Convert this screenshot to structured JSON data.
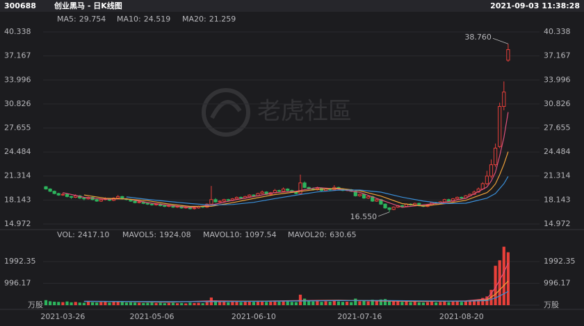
{
  "chart_data": {
    "type": "candlestick",
    "code": "300688",
    "title": "创业黑马 - 日K线图",
    "timestamp": "2021-09-03 11:38:28",
    "watermark": "老虎社區",
    "up_color": "#e8403a",
    "down_color": "#2db55d",
    "grid": true,
    "categories": [
      null,
      null,
      null,
      null,
      "2021-03-26",
      null,
      null,
      null,
      null,
      null,
      null,
      null,
      null,
      null,
      null,
      null,
      null,
      null,
      null,
      null,
      null,
      null,
      null,
      null,
      null,
      "2021-05-06",
      null,
      null,
      null,
      null,
      null,
      null,
      null,
      null,
      null,
      null,
      null,
      null,
      null,
      null,
      null,
      null,
      null,
      null,
      null,
      null,
      null,
      null,
      null,
      "2021-06-10",
      null,
      null,
      null,
      null,
      null,
      null,
      null,
      null,
      null,
      null,
      null,
      null,
      null,
      null,
      null,
      null,
      null,
      null,
      null,
      null,
      null,
      null,
      null,
      null,
      "2021-07-16",
      null,
      null,
      null,
      null,
      null,
      null,
      null,
      null,
      null,
      null,
      null,
      null,
      null,
      null,
      null,
      null,
      null,
      null,
      null,
      null,
      null,
      null,
      null,
      "2021-08-20",
      null,
      null,
      null,
      null,
      null,
      null,
      null,
      null,
      null,
      null,
      null
    ],
    "ohlc": [
      [
        19.9,
        20.0,
        19.5,
        19.6
      ],
      [
        19.6,
        19.7,
        19.2,
        19.3
      ],
      [
        19.3,
        19.4,
        18.9,
        19.0
      ],
      [
        19.0,
        19.1,
        18.7,
        18.8
      ],
      [
        18.8,
        19.1,
        18.7,
        18.9
      ],
      [
        18.9,
        19.0,
        18.5,
        18.6
      ],
      [
        18.6,
        18.7,
        18.3,
        18.5
      ],
      [
        18.5,
        18.9,
        18.4,
        18.7
      ],
      [
        18.7,
        18.8,
        18.3,
        18.4
      ],
      [
        18.4,
        18.5,
        18.1,
        18.3
      ],
      [
        18.3,
        18.6,
        18.2,
        18.5
      ],
      [
        18.5,
        18.6,
        18.1,
        18.2
      ],
      [
        18.2,
        18.3,
        17.9,
        18.0
      ],
      [
        18.0,
        18.3,
        17.9,
        18.2
      ],
      [
        18.2,
        18.5,
        18.1,
        18.3
      ],
      [
        18.3,
        18.4,
        18.0,
        18.1
      ],
      [
        18.1,
        18.5,
        18.0,
        18.4
      ],
      [
        18.4,
        18.8,
        18.3,
        18.6
      ],
      [
        18.6,
        18.7,
        18.2,
        18.3
      ],
      [
        18.3,
        18.4,
        18.1,
        18.2
      ],
      [
        18.2,
        18.3,
        17.9,
        18.0
      ],
      [
        18.0,
        18.1,
        17.7,
        17.8
      ],
      [
        17.8,
        18.0,
        17.7,
        17.9
      ],
      [
        17.9,
        18.0,
        17.6,
        17.7
      ],
      [
        17.7,
        17.8,
        17.5,
        17.6
      ],
      [
        17.6,
        17.7,
        17.4,
        17.5
      ],
      [
        17.5,
        17.7,
        17.4,
        17.6
      ],
      [
        17.6,
        17.7,
        17.3,
        17.4
      ],
      [
        17.4,
        17.5,
        17.2,
        17.3
      ],
      [
        17.3,
        17.5,
        17.2,
        17.4
      ],
      [
        17.4,
        17.5,
        17.1,
        17.2
      ],
      [
        17.2,
        17.4,
        17.1,
        17.3
      ],
      [
        17.3,
        17.4,
        17.0,
        17.1
      ],
      [
        17.1,
        17.3,
        17.0,
        17.2
      ],
      [
        17.2,
        17.3,
        16.9,
        17.0
      ],
      [
        17.0,
        17.2,
        16.9,
        17.1
      ],
      [
        17.1,
        17.4,
        17.0,
        17.3
      ],
      [
        17.3,
        17.4,
        17.1,
        17.2
      ],
      [
        17.2,
        17.7,
        17.1,
        17.6
      ],
      [
        17.6,
        20.0,
        17.5,
        18.2
      ],
      [
        18.2,
        18.4,
        17.8,
        17.9
      ],
      [
        17.9,
        18.1,
        17.8,
        18.0
      ],
      [
        18.0,
        18.3,
        17.9,
        18.2
      ],
      [
        18.2,
        18.3,
        18.0,
        18.1
      ],
      [
        18.1,
        18.4,
        18.0,
        18.3
      ],
      [
        18.3,
        18.6,
        18.2,
        18.5
      ],
      [
        18.5,
        18.6,
        18.3,
        18.4
      ],
      [
        18.4,
        18.7,
        18.3,
        18.6
      ],
      [
        18.6,
        18.9,
        18.5,
        18.8
      ],
      [
        18.8,
        18.9,
        18.6,
        18.7
      ],
      [
        18.7,
        19.1,
        18.6,
        19.0
      ],
      [
        19.0,
        19.4,
        18.9,
        19.2
      ],
      [
        19.2,
        19.3,
        18.8,
        18.9
      ],
      [
        18.9,
        19.2,
        18.8,
        19.1
      ],
      [
        19.1,
        19.6,
        19.0,
        19.4
      ],
      [
        19.4,
        19.5,
        19.2,
        19.3
      ],
      [
        19.3,
        19.8,
        19.2,
        19.6
      ],
      [
        19.6,
        19.7,
        19.3,
        19.4
      ],
      [
        19.4,
        19.5,
        19.1,
        19.2
      ],
      [
        19.2,
        19.3,
        18.9,
        19.0
      ],
      [
        19.0,
        21.5,
        18.9,
        20.4
      ],
      [
        20.4,
        20.6,
        19.7,
        19.8
      ],
      [
        19.8,
        19.9,
        19.5,
        19.6
      ],
      [
        19.6,
        19.8,
        19.4,
        19.5
      ],
      [
        19.5,
        19.9,
        19.4,
        19.7
      ],
      [
        19.7,
        19.8,
        19.3,
        19.4
      ],
      [
        19.4,
        19.7,
        19.3,
        19.6
      ],
      [
        19.6,
        19.7,
        19.4,
        19.5
      ],
      [
        19.5,
        20.1,
        19.4,
        19.8
      ],
      [
        19.8,
        19.9,
        19.5,
        19.6
      ],
      [
        19.6,
        19.7,
        19.3,
        19.4
      ],
      [
        19.4,
        19.6,
        19.3,
        19.5
      ],
      [
        19.5,
        19.6,
        19.2,
        19.3
      ],
      [
        19.3,
        19.4,
        18.6,
        18.7
      ],
      [
        18.7,
        19.0,
        18.6,
        18.9
      ],
      [
        18.9,
        19.0,
        18.3,
        18.4
      ],
      [
        18.4,
        18.8,
        18.3,
        18.6
      ],
      [
        18.6,
        18.7,
        17.9,
        18.0
      ],
      [
        18.0,
        18.3,
        17.9,
        18.2
      ],
      [
        18.2,
        18.3,
        17.5,
        17.6
      ],
      [
        17.6,
        17.7,
        17.0,
        17.1
      ],
      [
        17.1,
        17.2,
        16.55,
        16.9
      ],
      [
        16.9,
        17.3,
        16.8,
        17.2
      ],
      [
        17.2,
        17.5,
        17.1,
        17.4
      ],
      [
        17.4,
        17.5,
        17.2,
        17.3
      ],
      [
        17.3,
        17.7,
        17.2,
        17.6
      ],
      [
        17.6,
        17.7,
        17.4,
        17.5
      ],
      [
        17.5,
        17.8,
        17.4,
        17.7
      ],
      [
        17.7,
        17.8,
        17.3,
        17.4
      ],
      [
        17.4,
        17.5,
        17.2,
        17.3
      ],
      [
        17.3,
        17.6,
        17.2,
        17.5
      ],
      [
        17.5,
        17.9,
        17.4,
        17.8
      ],
      [
        17.8,
        17.9,
        17.6,
        17.7
      ],
      [
        17.7,
        18.0,
        17.6,
        17.9
      ],
      [
        17.9,
        18.3,
        17.8,
        18.2
      ],
      [
        18.2,
        18.3,
        17.9,
        18.0
      ],
      [
        18.0,
        18.4,
        17.9,
        18.3
      ],
      [
        18.3,
        18.6,
        18.2,
        18.5
      ],
      [
        18.5,
        18.6,
        18.3,
        18.4
      ],
      [
        18.4,
        18.8,
        18.3,
        18.7
      ],
      [
        18.7,
        19.0,
        18.6,
        18.9
      ],
      [
        18.9,
        19.4,
        18.8,
        19.2
      ],
      [
        19.2,
        19.8,
        19.1,
        19.6
      ],
      [
        19.6,
        20.5,
        19.5,
        20.3
      ],
      [
        20.3,
        22.0,
        20.1,
        21.3
      ],
      [
        21.3,
        23.5,
        21.0,
        22.8
      ],
      [
        22.8,
        25.6,
        22.5,
        25.0
      ],
      [
        25.2,
        31.0,
        25.0,
        30.5
      ],
      [
        30.5,
        33.8,
        30.0,
        32.4
      ],
      [
        36.6,
        38.76,
        36.4,
        38.0
      ]
    ],
    "volume": [
      230,
      180,
      160,
      150,
      140,
      170,
      130,
      150,
      120,
      110,
      160,
      130,
      120,
      140,
      150,
      120,
      170,
      190,
      140,
      120,
      130,
      120,
      110,
      100,
      110,
      120,
      100,
      110,
      90,
      100,
      110,
      90,
      100,
      80,
      120,
      100,
      110,
      90,
      140,
      350,
      220,
      150,
      160,
      130,
      170,
      180,
      140,
      160,
      190,
      150,
      170,
      200,
      150,
      160,
      210,
      160,
      200,
      170,
      150,
      140,
      480,
      300,
      200,
      170,
      190,
      150,
      180,
      160,
      220,
      170,
      150,
      160,
      140,
      300,
      180,
      220,
      170,
      250,
      180,
      260,
      280,
      210,
      190,
      180,
      150,
      170,
      140,
      160,
      130,
      120,
      140,
      160,
      130,
      150,
      180,
      140,
      170,
      190,
      150,
      180,
      200,
      230,
      260,
      330,
      400,
      700,
      1800,
      2050,
      2670,
      2417.1
    ],
    "volume_name": "VOL:",
    "volume_last_label": "2417.10",
    "high_label": "38.760",
    "low_label": "16.550",
    "ylim": [
      14.972,
      40.338
    ],
    "yticks": [
      40.338,
      37.167,
      33.996,
      30.826,
      27.655,
      24.484,
      21.314,
      18.143,
      14.972
    ],
    "y2lim": [
      0,
      2850
    ],
    "y2ticks": [
      1992.35,
      996.17,
      {
        "value": 0,
        "label": "万股"
      }
    ],
    "ma_series": [
      {
        "name": "MA5:",
        "color": "#e0527c",
        "x": [
          4,
          9,
          14,
          19,
          24,
          29,
          34,
          39,
          44,
          49,
          54,
          59,
          64,
          69,
          74,
          79,
          84,
          89,
          94,
          99,
          104,
          105,
          106,
          107,
          108,
          109
        ],
        "values": [
          19.12,
          18.5,
          18.24,
          18.32,
          17.8,
          17.44,
          17.16,
          17.48,
          18.1,
          18.6,
          19.12,
          19.3,
          19.8,
          19.58,
          19.16,
          18.16,
          17.18,
          17.5,
          17.82,
          18.38,
          19.86,
          20.64,
          21.8,
          23.98,
          26.4,
          29.754
        ]
      },
      {
        "name": "MA10:",
        "color": "#f0a23a",
        "x": [
          9,
          14,
          19,
          24,
          29,
          34,
          39,
          44,
          49,
          54,
          59,
          64,
          69,
          74,
          79,
          84,
          89,
          94,
          99,
          104,
          105,
          106,
          107,
          108,
          109
        ],
        "values": [
          18.81,
          18.37,
          18.28,
          18.06,
          17.62,
          17.3,
          17.32,
          17.79,
          18.35,
          18.86,
          19.21,
          19.55,
          19.69,
          19.37,
          18.66,
          17.67,
          17.34,
          17.66,
          18.1,
          19.12,
          19.6,
          20.27,
          21.47,
          22.87,
          24.519
        ]
      },
      {
        "name": "MA20:",
        "color": "#3a8fd9",
        "x": [
          19,
          24,
          29,
          34,
          39,
          44,
          49,
          54,
          59,
          64,
          69,
          74,
          79,
          84,
          89,
          94,
          99,
          104,
          106,
          108,
          109
        ],
        "values": [
          18.55,
          18.22,
          17.95,
          17.68,
          17.47,
          17.55,
          17.84,
          18.33,
          18.78,
          19.21,
          19.45,
          19.46,
          19.18,
          18.52,
          18.0,
          17.67,
          17.72,
          18.39,
          19.0,
          20.3,
          21.259
        ]
      }
    ],
    "volume_ma_series": [
      {
        "name": "MAVOL5:",
        "color": "#e0527c",
        "axis": "y2",
        "x": [
          9,
          19,
          29,
          39,
          49,
          59,
          69,
          79,
          89,
          99,
          104,
          106,
          108,
          109
        ],
        "values": [
          180,
          160,
          140,
          200,
          180,
          210,
          230,
          190,
          170,
          200,
          290,
          800,
          1500,
          1924.08
        ]
      },
      {
        "name": "MAVOL10:",
        "color": "#f0a23a",
        "axis": "y2",
        "x": [
          9,
          19,
          29,
          39,
          49,
          59,
          69,
          79,
          89,
          99,
          104,
          106,
          108,
          109
        ],
        "values": [
          170,
          165,
          150,
          170,
          185,
          195,
          220,
          210,
          180,
          185,
          240,
          500,
          900,
          1097.54
        ]
      },
      {
        "name": "MAVOL20:",
        "color": "#3a8fd9",
        "axis": "y2",
        "x": [
          9,
          19,
          29,
          39,
          49,
          59,
          69,
          79,
          89,
          99,
          104,
          106,
          108,
          109
        ],
        "values": [
          175,
          170,
          160,
          160,
          175,
          190,
          210,
          215,
          195,
          185,
          210,
          330,
          520,
          630.65
        ]
      }
    ]
  }
}
